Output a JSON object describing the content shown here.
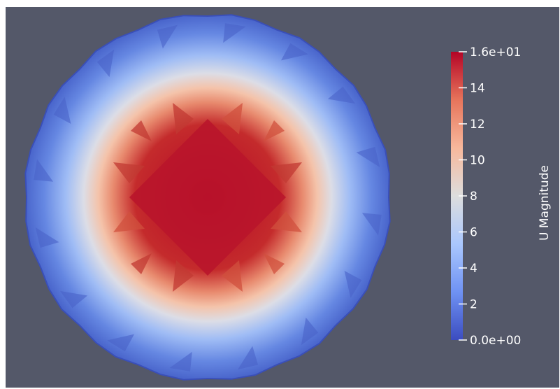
{
  "chart_data": {
    "type": "heatmap",
    "title": "",
    "scalar_bar": {
      "title": "U Magnitude",
      "range": [
        0,
        16
      ],
      "placement": "right",
      "colormap": "Cool to Warm",
      "color_stops": [
        "#3b4cc0",
        "#6f92f3",
        "#aac7fd",
        "#dddddd",
        "#f7b89c",
        "#e7745b",
        "#b40426"
      ],
      "ticks": [
        {
          "value": 16,
          "label": "1.6e+01"
        },
        {
          "value": 14,
          "label": "14"
        },
        {
          "value": 12,
          "label": "12"
        },
        {
          "value": 10,
          "label": "10"
        },
        {
          "value": 8,
          "label": "8"
        },
        {
          "value": 6,
          "label": "6"
        },
        {
          "value": 4,
          "label": "4"
        },
        {
          "value": 2,
          "label": "2"
        },
        {
          "value": 0,
          "label": "0.0e+00"
        }
      ]
    },
    "field": {
      "domain_shape": "disk",
      "max_value": 16,
      "min_value": 0,
      "high_region_shape": "diamond",
      "edge_color": "#3a4fb8"
    }
  },
  "background_color": "#545869"
}
